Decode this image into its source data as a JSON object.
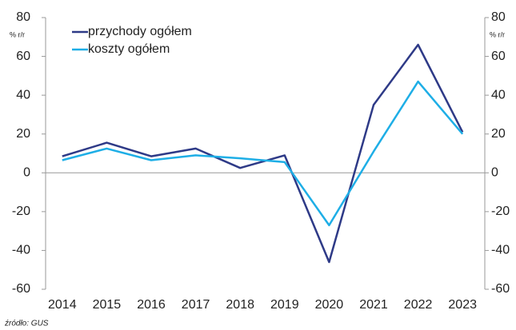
{
  "chart_data": {
    "type": "line",
    "y_label": "% r/r",
    "y2_label": "% r/r",
    "source": "źródło: GUS",
    "categories": [
      "2014",
      "2015",
      "2016",
      "2017",
      "2018",
      "2019",
      "2020",
      "2021",
      "2022",
      "2023"
    ],
    "series": [
      {
        "name": "przychody ogółem",
        "color": "#2e3a87",
        "values": [
          8.5,
          15.5,
          8.5,
          12.5,
          2.5,
          9,
          -46,
          35,
          66,
          21
        ]
      },
      {
        "name": "koszty ogółem",
        "color": "#1eaee6",
        "values": [
          6.5,
          12.5,
          6.5,
          9,
          7.5,
          5.5,
          -27,
          11,
          47,
          20
        ]
      }
    ],
    "ylim": [
      -60,
      80
    ],
    "yticks": [
      -60,
      -40,
      -20,
      0,
      20,
      40,
      60,
      80
    ],
    "y2lim": [
      -60,
      80
    ],
    "y2ticks": [
      -60,
      -40,
      -20,
      0,
      20,
      40,
      60,
      80
    ],
    "legend": "upper left"
  }
}
